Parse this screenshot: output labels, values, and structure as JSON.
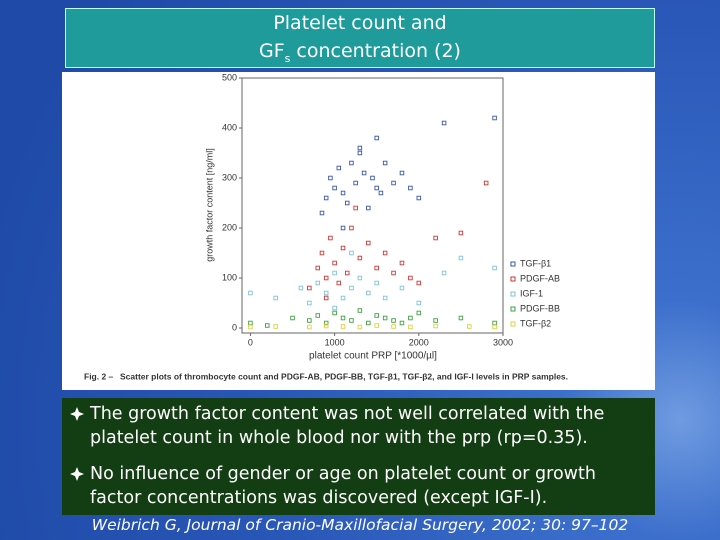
{
  "header": {
    "title_line1": "Platelet count and",
    "title_line2_a": "GF",
    "title_line2_sub": "s",
    "title_line2_b": " concentration (2)"
  },
  "chart_data": {
    "type": "scatter",
    "ylabel": "growth factor content [ng/ml]",
    "xlabel": "platelet count PRP [*1000/µl]",
    "xlim": [
      -100,
      3000
    ],
    "ylim": [
      -10,
      500
    ],
    "xticks": [
      0,
      1000,
      2000,
      3000
    ],
    "yticks": [
      0,
      100,
      200,
      300,
      400,
      500
    ],
    "legend": "right",
    "caption_label": "Fig. 2 –",
    "caption": "Scatter plots of thrombocyte count and PDGF-AB, PDGF-BB, TGF-β1, TGF-β2, and IGF-I levels in PRP samples.",
    "series": [
      {
        "name": "TGF-β1",
        "color": "#3a55a8",
        "x": [
          850,
          900,
          950,
          1000,
          1050,
          1100,
          1150,
          1200,
          1250,
          1300,
          1350,
          1400,
          1450,
          1500,
          1550,
          1600,
          1700,
          1800,
          1900,
          2000,
          1100,
          1300,
          2300,
          2900,
          1500
        ],
        "values": [
          230,
          260,
          300,
          280,
          320,
          270,
          250,
          330,
          290,
          350,
          310,
          240,
          300,
          380,
          270,
          330,
          290,
          310,
          280,
          260,
          200,
          360,
          410,
          420,
          280
        ]
      },
      {
        "name": "PDGF-AB",
        "color": "#d03535",
        "x": [
          700,
          800,
          850,
          900,
          950,
          1000,
          1050,
          1100,
          1150,
          1200,
          1300,
          1400,
          1500,
          1600,
          1700,
          1800,
          1900,
          2000,
          2200,
          2500,
          2800,
          1250,
          900
        ],
        "values": [
          80,
          120,
          150,
          100,
          180,
          130,
          90,
          160,
          110,
          200,
          140,
          170,
          120,
          150,
          110,
          130,
          100,
          90,
          180,
          190,
          290,
          240,
          60
        ]
      },
      {
        "name": "IGF-1",
        "color": "#7fc3d6",
        "x": [
          0,
          300,
          600,
          700,
          800,
          900,
          1000,
          1100,
          1200,
          1300,
          1400,
          1500,
          1600,
          1800,
          2000,
          2300,
          2500,
          2900,
          1000,
          1200
        ],
        "values": [
          70,
          60,
          80,
          50,
          90,
          70,
          110,
          60,
          80,
          100,
          70,
          90,
          60,
          80,
          50,
          110,
          140,
          120,
          40,
          150
        ]
      },
      {
        "name": "PDGF-BB",
        "color": "#3fa040",
        "x": [
          0,
          200,
          500,
          700,
          800,
          900,
          1000,
          1100,
          1200,
          1300,
          1400,
          1500,
          1600,
          1700,
          1800,
          1900,
          2000,
          2200,
          2500,
          2900
        ],
        "values": [
          10,
          5,
          20,
          15,
          25,
          10,
          30,
          20,
          15,
          35,
          10,
          25,
          20,
          15,
          10,
          20,
          30,
          15,
          20,
          10
        ]
      },
      {
        "name": "TGF-β2",
        "color": "#e0cf3a",
        "x": [
          0,
          300,
          700,
          900,
          1100,
          1300,
          1500,
          1700,
          1900,
          2200,
          2600,
          2900
        ],
        "values": [
          2,
          3,
          2,
          4,
          3,
          2,
          5,
          3,
          2,
          4,
          3,
          2
        ]
      }
    ]
  },
  "bullets": [
    [
      "The growth factor content was not well correlated with the",
      "platelet count in whole blood nor with the prp (rp=0.35)."
    ],
    [
      "No influence of gender or age on platelet count or growth",
      "factor concentrations was discovered (except IGF-I)."
    ]
  ],
  "citation": "Weibrich G, Journal of Cranio-Maxillofacial Surgery, 2002; 30: 97–102"
}
